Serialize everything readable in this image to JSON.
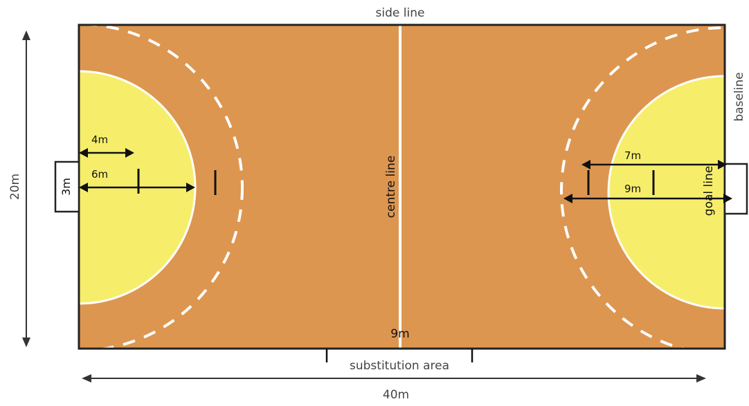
{
  "colors": {
    "court": "#DD9650",
    "area": "#F6EE6B",
    "lines": "#ffffff",
    "border": "#222222",
    "arrows": "#111111"
  },
  "labels": {
    "side_line": "side line",
    "baseline": "baseline",
    "centre_line": "centre line",
    "goal_line": "goal line",
    "substitution_area": "substitution area",
    "width_20m": "20m",
    "length_40m": "40m",
    "goal_3m": "3m",
    "left_4m": "4m",
    "left_6m": "6m",
    "right_7m": "7m",
    "right_9m": "9m",
    "bottom_9m": "9m"
  }
}
